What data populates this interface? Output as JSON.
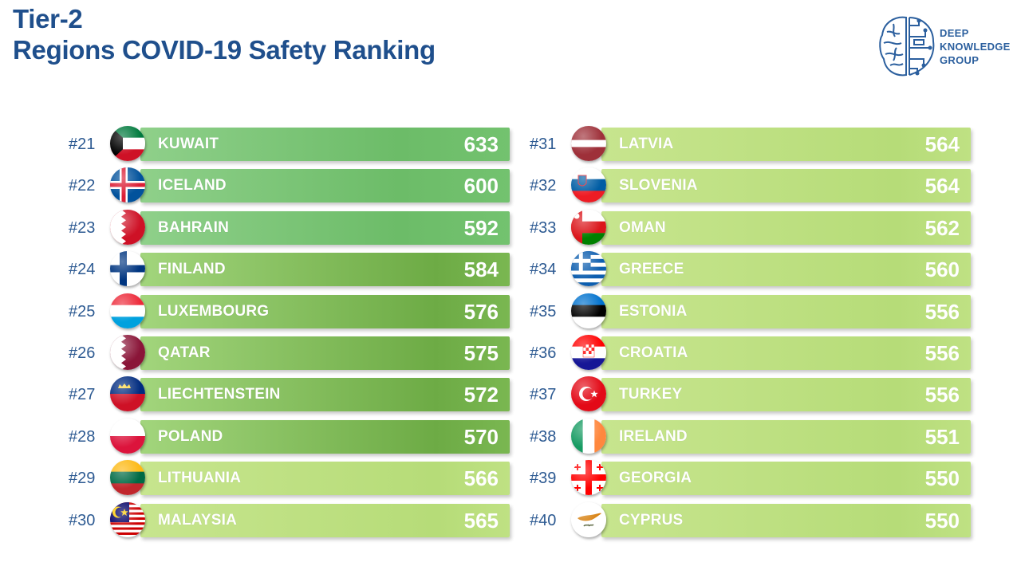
{
  "title": {
    "line1": "Tier-2",
    "line2": "Regions COVID-19 Safety Ranking"
  },
  "logo": {
    "line1": "DEEP",
    "line2": "KNOWLEDGE",
    "line3": "GROUP",
    "icon": "brain-icon",
    "color": "#2b5f9e"
  },
  "colors": {
    "title": "#1f4f8c",
    "rank": "#2d5a92",
    "bar_light": "#bfe183",
    "bar_mid": "#73c26f",
    "bar_dark": "#6dab45"
  },
  "chart_data": {
    "type": "bar",
    "title": "",
    "xlabel": "",
    "ylabel": "",
    "categories": [
      "KUWAIT",
      "ICELAND",
      "BAHRAIN",
      "FINLAND",
      "LUXEMBOURG",
      "QATAR",
      "LIECHTENSTEIN",
      "POLAND",
      "LITHUANIA",
      "MALAYSIA",
      "LATVIA",
      "SLOVENIA",
      "OMAN",
      "GREECE",
      "ESTONIA",
      "CROATIA",
      "TURKEY",
      "IRELAND",
      "GEORGIA",
      "CYPRUS"
    ],
    "ranks": [
      "#21",
      "#22",
      "#23",
      "#24",
      "#25",
      "#26",
      "#27",
      "#28",
      "#29",
      "#30",
      "#31",
      "#32",
      "#33",
      "#34",
      "#35",
      "#36",
      "#37",
      "#38",
      "#39",
      "#40"
    ],
    "values": [
      633,
      600,
      592,
      584,
      576,
      575,
      572,
      570,
      566,
      565,
      564,
      564,
      562,
      560,
      556,
      556,
      556,
      551,
      550,
      550
    ],
    "flags": [
      "kuwait-flag-icon",
      "iceland-flag-icon",
      "bahrain-flag-icon",
      "finland-flag-icon",
      "luxembourg-flag-icon",
      "qatar-flag-icon",
      "liechtenstein-flag-icon",
      "poland-flag-icon",
      "lithuania-flag-icon",
      "malaysia-flag-icon",
      "latvia-flag-icon",
      "slovenia-flag-icon",
      "oman-flag-icon",
      "greece-flag-icon",
      "estonia-flag-icon",
      "croatia-flag-icon",
      "turkey-flag-icon",
      "ireland-flag-icon",
      "georgia-flag-icon",
      "cyprus-flag-icon"
    ],
    "shade": [
      "mid",
      "mid",
      "mid",
      "dark",
      "dark",
      "dark",
      "dark",
      "dark",
      "light",
      "light",
      "light",
      "light",
      "light",
      "light",
      "light",
      "light",
      "light",
      "light",
      "light",
      "light"
    ]
  }
}
